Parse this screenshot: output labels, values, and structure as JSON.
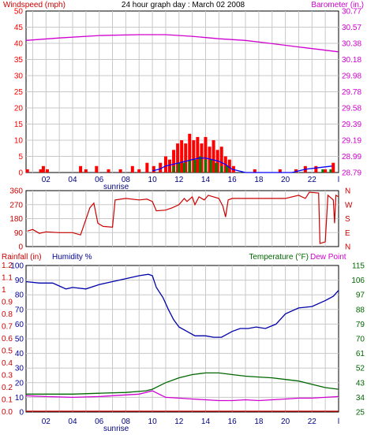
{
  "title": "24 hour graph day : March 02 2008",
  "colors": {
    "background": "#ffffff",
    "plot_bg": "#ffffff",
    "grid": "#c8c8c8",
    "frame": "#000000",
    "wind": "#ff0000",
    "gust": "#ff0000",
    "wind_avg": "#0000ff",
    "wind_green": "#008000",
    "barometer": "#d000d0",
    "direction": "#cc0000",
    "humidity": "#0000aa",
    "temperature": "#006600",
    "dewpoint": "#d000d0",
    "rainfall": "#cc0000",
    "humidity_label": "#000099",
    "temperature_label": "#006600",
    "rainfall_label": "#cc0000",
    "dewpoint_label": "#cc00cc"
  },
  "x_ticks": [
    "02",
    "04",
    "06",
    "08",
    "10",
    "12",
    "14",
    "16",
    "18",
    "20",
    "22",
    "l"
  ],
  "sunrise_label": "sunrise",
  "chart_data": [
    {
      "id": "wind",
      "type": "bar",
      "left_label": "Windspeed (mph)",
      "right_label": "Barometer (in.)",
      "left_ticks": [
        "0",
        "5",
        "10",
        "15",
        "20",
        "25",
        "30",
        "35",
        "40",
        "45",
        "50"
      ],
      "right_ticks": [
        "28.79",
        "28.99",
        "29.19",
        "29.39",
        "29.58",
        "29.78",
        "29.98",
        "30.18",
        "30.38",
        "30.57",
        "30.77"
      ],
      "ylim_left": [
        0,
        50
      ],
      "ylim_right": [
        28.79,
        30.77
      ],
      "xlim": [
        0.5,
        24
      ],
      "gust_bars": [
        [
          0.6,
          1
        ],
        [
          1.6,
          1
        ],
        [
          1.8,
          2
        ],
        [
          2.1,
          1
        ],
        [
          4.6,
          2
        ],
        [
          5.0,
          1
        ],
        [
          5.8,
          2
        ],
        [
          6.7,
          1
        ],
        [
          7.6,
          1
        ],
        [
          8.5,
          2
        ],
        [
          9.0,
          1
        ],
        [
          9.6,
          3
        ],
        [
          10.1,
          2
        ],
        [
          10.6,
          3
        ],
        [
          11.0,
          5
        ],
        [
          11.3,
          4
        ],
        [
          11.6,
          7
        ],
        [
          11.9,
          9
        ],
        [
          12.2,
          10
        ],
        [
          12.5,
          9
        ],
        [
          12.8,
          12
        ],
        [
          13.1,
          10
        ],
        [
          13.4,
          11
        ],
        [
          13.7,
          9
        ],
        [
          14.0,
          11
        ],
        [
          14.3,
          8
        ],
        [
          14.6,
          10
        ],
        [
          14.9,
          7
        ],
        [
          15.2,
          8
        ],
        [
          15.5,
          5
        ],
        [
          15.8,
          4
        ],
        [
          16.1,
          2
        ],
        [
          17.7,
          1
        ],
        [
          19.6,
          1
        ],
        [
          20.8,
          1
        ],
        [
          21.5,
          2
        ],
        [
          22.3,
          2
        ],
        [
          23.0,
          1
        ],
        [
          23.6,
          3
        ]
      ],
      "avg_line": [
        [
          10.0,
          0.5
        ],
        [
          10.5,
          1
        ],
        [
          11.0,
          2
        ],
        [
          11.5,
          2.5
        ],
        [
          12.0,
          3
        ],
        [
          12.5,
          3.5
        ],
        [
          13.0,
          4
        ],
        [
          13.5,
          4.5
        ],
        [
          14.0,
          4.5
        ],
        [
          14.5,
          4
        ],
        [
          15.0,
          3.5
        ],
        [
          15.5,
          2.5
        ],
        [
          16.0,
          1
        ],
        [
          16.5,
          0.5
        ],
        [
          17.0,
          0
        ],
        [
          20.5,
          0
        ],
        [
          21.5,
          1
        ],
        [
          22.5,
          1.5
        ],
        [
          23.5,
          2
        ]
      ],
      "green_bars": [
        [
          11.6,
          2
        ],
        [
          12.0,
          3
        ],
        [
          12.4,
          3
        ],
        [
          12.8,
          4
        ],
        [
          13.2,
          4
        ],
        [
          13.6,
          5
        ],
        [
          14.0,
          4
        ],
        [
          14.4,
          4
        ],
        [
          14.8,
          3
        ],
        [
          15.2,
          2
        ],
        [
          15.6,
          2
        ],
        [
          22.8,
          1
        ],
        [
          23.4,
          1
        ]
      ],
      "barometer_line": [
        [
          0.5,
          30.41
        ],
        [
          3.0,
          30.44
        ],
        [
          6.0,
          30.47
        ],
        [
          9.0,
          30.48
        ],
        [
          11.0,
          30.48
        ],
        [
          13.0,
          30.46
        ],
        [
          15.0,
          30.43
        ],
        [
          17.0,
          30.41
        ],
        [
          19.0,
          30.37
        ],
        [
          21.0,
          30.33
        ],
        [
          22.5,
          30.3
        ],
        [
          24.0,
          30.27
        ]
      ]
    },
    {
      "id": "direction",
      "type": "line",
      "left_ticks": [
        "0",
        "90",
        "180",
        "270",
        "360"
      ],
      "right_ticks": [
        "N",
        "E",
        "S",
        "W",
        "N"
      ],
      "ylim": [
        0,
        360
      ],
      "line": [
        [
          0.6,
          100
        ],
        [
          1.0,
          110
        ],
        [
          1.5,
          85
        ],
        [
          2.0,
          95
        ],
        [
          3.0,
          90
        ],
        [
          4.0,
          90
        ],
        [
          4.6,
          75
        ],
        [
          5.3,
          250
        ],
        [
          5.6,
          280
        ],
        [
          5.9,
          150
        ],
        [
          6.3,
          130
        ],
        [
          7.0,
          125
        ],
        [
          7.2,
          300
        ],
        [
          8.0,
          310
        ],
        [
          9.0,
          300
        ],
        [
          9.6,
          305
        ],
        [
          10.0,
          290
        ],
        [
          10.3,
          230
        ],
        [
          11.0,
          235
        ],
        [
          11.5,
          250
        ],
        [
          12.0,
          270
        ],
        [
          12.4,
          310
        ],
        [
          12.6,
          290
        ],
        [
          13.0,
          320
        ],
        [
          13.2,
          270
        ],
        [
          13.5,
          320
        ],
        [
          13.9,
          300
        ],
        [
          14.2,
          330
        ],
        [
          14.6,
          320
        ],
        [
          15.0,
          310
        ],
        [
          15.3,
          260
        ],
        [
          15.5,
          190
        ],
        [
          15.7,
          300
        ],
        [
          16.0,
          310
        ],
        [
          18.0,
          310
        ],
        [
          20.0,
          310
        ],
        [
          21.0,
          330
        ],
        [
          21.5,
          310
        ],
        [
          21.8,
          350
        ],
        [
          22.5,
          345
        ],
        [
          22.6,
          20
        ],
        [
          23.0,
          30
        ],
        [
          23.2,
          330
        ],
        [
          23.6,
          300
        ],
        [
          23.7,
          150
        ],
        [
          23.8,
          330
        ],
        [
          24.0,
          320
        ]
      ]
    },
    {
      "id": "climate",
      "type": "line",
      "rain_label": "Rainfall (in)",
      "humidity_label": "Humidity %",
      "temperature_label": "Temperature (°F)",
      "dewpoint_label": "Dew Point",
      "rain_ticks": [
        "0.0",
        "0.1",
        "0.2",
        "0.3",
        "0.4",
        "0.5",
        "0.6",
        "0.7",
        "0.8",
        "0.9",
        "1",
        "1.1",
        "1.2"
      ],
      "humidity_ticks": [
        "0",
        "10",
        "20",
        "30",
        "40",
        "50",
        "60",
        "70",
        "80",
        "90",
        "100"
      ],
      "temp_ticks": [
        "25",
        "34",
        "43",
        "52",
        "61",
        "70",
        "79",
        "88",
        "97",
        "106",
        "115"
      ],
      "humidity_ylim": [
        0,
        100
      ],
      "temp_ylim": [
        25,
        115
      ],
      "humidity": [
        [
          0.5,
          89
        ],
        [
          1.5,
          88
        ],
        [
          2.5,
          88
        ],
        [
          3.0,
          86
        ],
        [
          3.5,
          84
        ],
        [
          4.0,
          85
        ],
        [
          5.0,
          84
        ],
        [
          6.0,
          87
        ],
        [
          7.0,
          89
        ],
        [
          8.0,
          91
        ],
        [
          9.0,
          93
        ],
        [
          9.7,
          94
        ],
        [
          10.0,
          93
        ],
        [
          10.3,
          85
        ],
        [
          10.8,
          78
        ],
        [
          11.2,
          70
        ],
        [
          11.6,
          63
        ],
        [
          12.0,
          58
        ],
        [
          12.6,
          55
        ],
        [
          13.2,
          52
        ],
        [
          14.0,
          52
        ],
        [
          14.6,
          51
        ],
        [
          15.2,
          51
        ],
        [
          16.0,
          55
        ],
        [
          16.6,
          57
        ],
        [
          17.2,
          57
        ],
        [
          17.8,
          58
        ],
        [
          18.5,
          57
        ],
        [
          19.3,
          60
        ],
        [
          20.0,
          67
        ],
        [
          21.0,
          71
        ],
        [
          22.0,
          72
        ],
        [
          23.0,
          76
        ],
        [
          23.6,
          79
        ],
        [
          24.0,
          83
        ]
      ],
      "temperature": [
        [
          0.5,
          36
        ],
        [
          2.0,
          36
        ],
        [
          4.0,
          36
        ],
        [
          6.0,
          36.5
        ],
        [
          8.0,
          37
        ],
        [
          9.5,
          38
        ],
        [
          10.0,
          39
        ],
        [
          10.5,
          41
        ],
        [
          11.0,
          43
        ],
        [
          12.0,
          46
        ],
        [
          13.0,
          48
        ],
        [
          14.0,
          49
        ],
        [
          15.0,
          49
        ],
        [
          16.0,
          48
        ],
        [
          17.0,
          47
        ],
        [
          18.0,
          46.5
        ],
        [
          19.0,
          46
        ],
        [
          20.0,
          45
        ],
        [
          21.0,
          44
        ],
        [
          22.0,
          42
        ],
        [
          23.0,
          40
        ],
        [
          24.0,
          39
        ]
      ],
      "dewpoint": [
        [
          0.5,
          35
        ],
        [
          2.0,
          34.5
        ],
        [
          4.0,
          34
        ],
        [
          6.0,
          34.5
        ],
        [
          8.0,
          35.5
        ],
        [
          9.0,
          36
        ],
        [
          10.0,
          38
        ],
        [
          10.5,
          36
        ],
        [
          11.0,
          34
        ],
        [
          12.0,
          33.5
        ],
        [
          13.0,
          33
        ],
        [
          14.0,
          32.5
        ],
        [
          15.0,
          32
        ],
        [
          16.0,
          32
        ],
        [
          17.0,
          32.5
        ],
        [
          18.0,
          32
        ],
        [
          19.0,
          32.5
        ],
        [
          20.0,
          33
        ],
        [
          21.0,
          33.5
        ],
        [
          22.0,
          33.5
        ],
        [
          23.0,
          34
        ],
        [
          24.0,
          34.5
        ]
      ],
      "rainfall": [
        [
          0.5,
          0.0
        ],
        [
          24.0,
          0.0
        ]
      ]
    }
  ]
}
